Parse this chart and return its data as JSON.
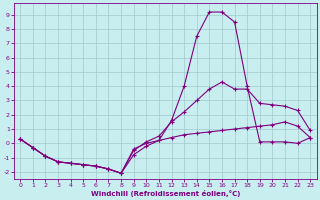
{
  "title": "",
  "xlabel": "Windchill (Refroidissement éolien,°C)",
  "ylabel": "",
  "bg_color": "#c8eef0",
  "line_color": "#800080",
  "grid_color": "#a0c8cc",
  "xlim": [
    -0.5,
    23.5
  ],
  "ylim": [
    -2.5,
    9.8
  ],
  "xticks": [
    0,
    1,
    2,
    3,
    4,
    5,
    6,
    7,
    8,
    9,
    10,
    11,
    12,
    13,
    14,
    15,
    16,
    17,
    18,
    19,
    20,
    21,
    22,
    23
  ],
  "yticks": [
    -2,
    -1,
    0,
    1,
    2,
    3,
    4,
    5,
    6,
    7,
    8,
    9
  ],
  "line1_x": [
    0,
    1,
    2,
    3,
    4,
    5,
    6,
    7,
    8,
    9,
    10,
    11,
    12,
    13,
    14,
    15,
    16,
    17,
    18,
    19,
    20,
    21,
    22,
    23
  ],
  "line1_y": [
    0.3,
    -0.3,
    -0.9,
    -1.3,
    -1.4,
    -1.5,
    -1.6,
    -1.8,
    -2.1,
    -0.8,
    -0.2,
    0.2,
    1.6,
    4.0,
    7.5,
    9.2,
    9.2,
    8.5,
    4.0,
    0.1,
    0.1,
    0.1,
    0.0,
    0.4
  ],
  "line2_x": [
    0,
    1,
    2,
    3,
    4,
    5,
    6,
    7,
    8,
    9,
    10,
    11,
    12,
    13,
    14,
    15,
    16,
    17,
    18,
    19,
    20,
    21,
    22,
    23
  ],
  "line2_y": [
    0.3,
    -0.3,
    -0.9,
    -1.3,
    -1.4,
    -1.5,
    -1.6,
    -1.8,
    -2.1,
    -0.5,
    0.1,
    0.5,
    1.5,
    2.2,
    3.0,
    3.8,
    4.3,
    3.8,
    3.8,
    2.8,
    2.7,
    2.6,
    2.3,
    0.9
  ],
  "line3_x": [
    0,
    1,
    2,
    3,
    4,
    5,
    6,
    7,
    8,
    9,
    10,
    11,
    12,
    13,
    14,
    15,
    16,
    17,
    18,
    19,
    20,
    21,
    22,
    23
  ],
  "line3_y": [
    0.3,
    -0.3,
    -0.9,
    -1.3,
    -1.4,
    -1.5,
    -1.6,
    -1.8,
    -2.1,
    -0.4,
    0.0,
    0.2,
    0.4,
    0.6,
    0.7,
    0.8,
    0.9,
    1.0,
    1.1,
    1.2,
    1.3,
    1.5,
    1.2,
    0.4
  ]
}
